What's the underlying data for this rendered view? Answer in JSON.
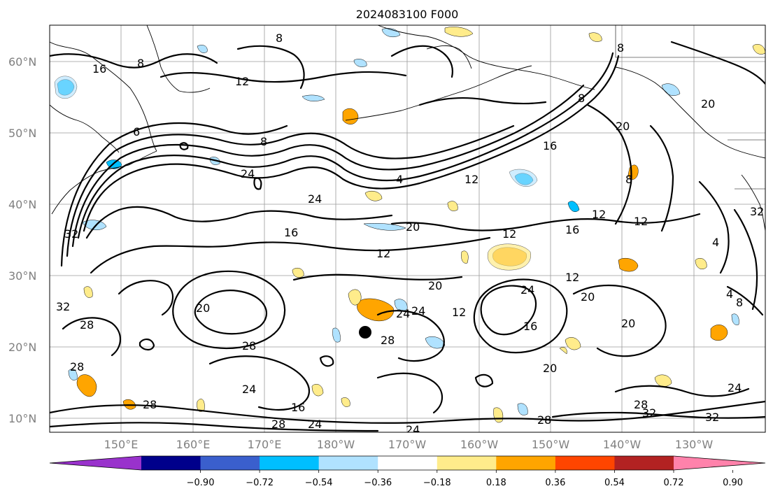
{
  "title": "2024083100 F000",
  "lat_labels": [
    "60°N",
    "50°N",
    "40°N",
    "30°N",
    "20°N",
    "10°N"
  ],
  "lon_labels": [
    "150°E",
    "160°E",
    "170°E",
    "180°W",
    "170°W",
    "160°W",
    "150°W",
    "140°W",
    "130°W"
  ],
  "contour_levels": [
    "4",
    "8",
    "12",
    "16",
    "20",
    "24",
    "28",
    "32"
  ],
  "colorbar": {
    "ticks": [
      "−0.90",
      "−0.72",
      "−0.54",
      "−0.36",
      "−0.18",
      "0.18",
      "0.36",
      "0.54",
      "0.72",
      "0.90"
    ],
    "colors": [
      "#9932cc",
      "#00008b",
      "#3a5fcd",
      "#00bfff",
      "#b0e2ff",
      "#ffffff",
      "#ffec8b",
      "#ffa500",
      "#ff4500",
      "#b22222",
      "#ff82ab"
    ],
    "extend": "both"
  },
  "marker": "storm center dot near 22°N, 174°W"
}
